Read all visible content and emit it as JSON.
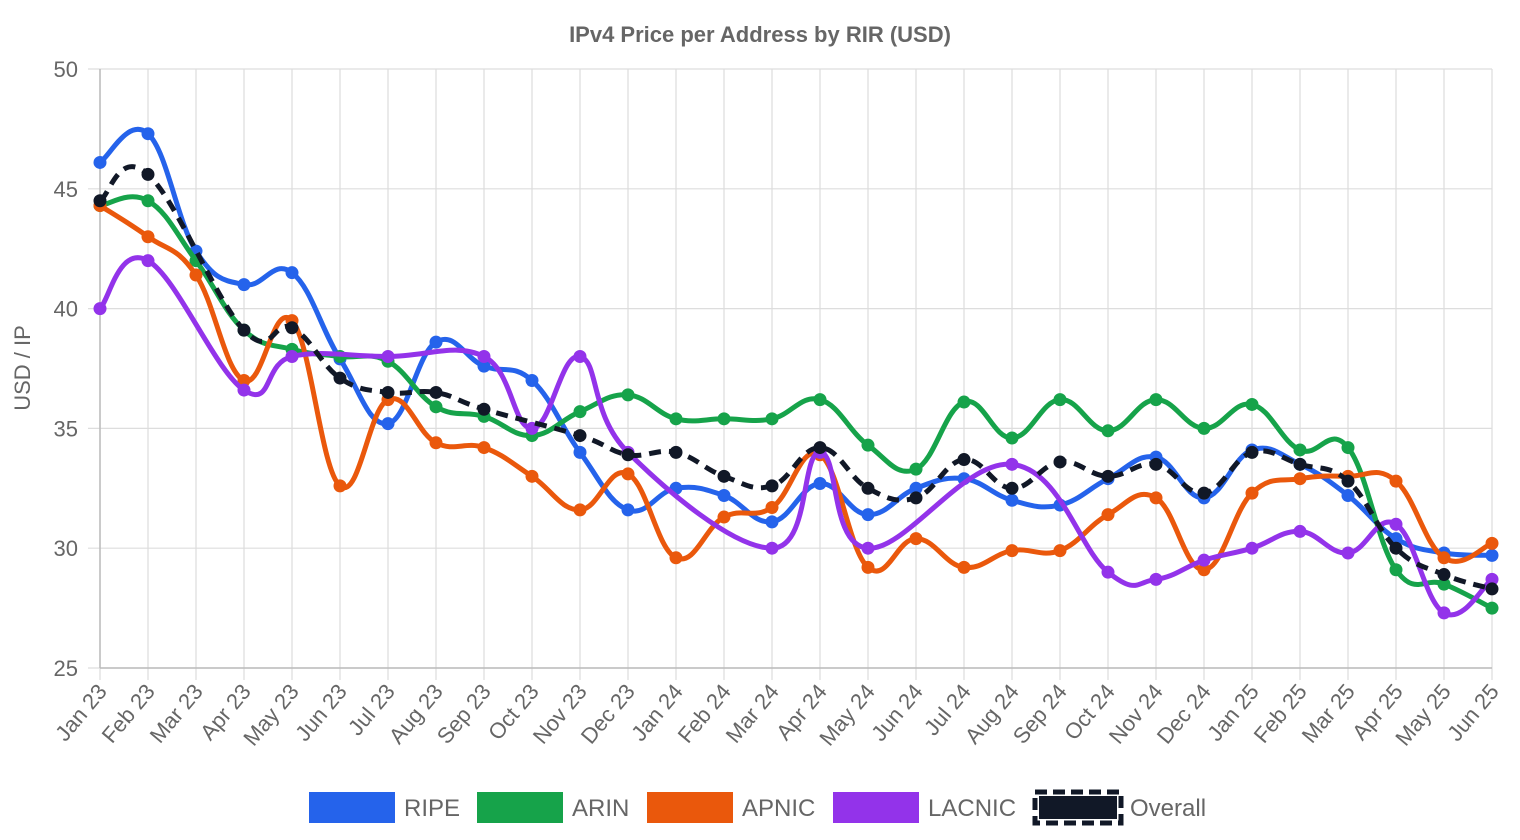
{
  "chart_data": {
    "type": "line",
    "title": "IPv4 Price per Address by RIR (USD)",
    "xlabel": "",
    "ylabel": "USD / IP",
    "ylim": [
      25,
      50
    ],
    "yticks": [
      25,
      30,
      35,
      40,
      45,
      50
    ],
    "grid": true,
    "legend_position": "bottom",
    "categories": [
      "Jan 23",
      "Feb 23",
      "Mar 23",
      "Apr 23",
      "May 23",
      "Jun 23",
      "Jul 23",
      "Aug 23",
      "Sep 23",
      "Oct 23",
      "Nov 23",
      "Dec 23",
      "Jan 24",
      "Feb 24",
      "Mar 24",
      "Apr 24",
      "May 24",
      "Jun 24",
      "Jul 24",
      "Aug 24",
      "Sep 24",
      "Oct 24",
      "Nov 24",
      "Dec 24",
      "Jan 25",
      "Feb 25",
      "Mar 25",
      "Apr 25",
      "May 25",
      "Jun 25"
    ],
    "series": [
      {
        "name": "RIPE",
        "color": "#2563eb",
        "dashed": false,
        "values": [
          46.1,
          47.3,
          42.4,
          41.0,
          41.5,
          37.9,
          35.2,
          38.6,
          37.6,
          37.0,
          34.0,
          31.6,
          32.5,
          32.2,
          31.1,
          32.7,
          31.4,
          32.5,
          32.9,
          32.0,
          31.8,
          32.9,
          33.8,
          32.1,
          34.1,
          33.5,
          32.2,
          30.4,
          29.8,
          29.7
        ]
      },
      {
        "name": "ARIN",
        "color": "#16a34a",
        "dashed": false,
        "values": [
          44.3,
          44.5,
          42.0,
          39.1,
          38.3,
          38.0,
          37.8,
          35.9,
          35.5,
          34.7,
          35.7,
          36.4,
          35.4,
          35.4,
          35.4,
          36.2,
          34.3,
          33.3,
          36.1,
          34.6,
          36.2,
          34.9,
          36.2,
          35.0,
          36.0,
          34.1,
          34.2,
          29.1,
          28.5,
          27.5
        ]
      },
      {
        "name": "APNIC",
        "color": "#ea580c",
        "dashed": false,
        "values": [
          44.3,
          43.0,
          41.4,
          37.0,
          39.5,
          32.6,
          36.2,
          34.4,
          34.2,
          33.0,
          31.6,
          33.1,
          29.6,
          31.3,
          31.7,
          33.9,
          29.2,
          30.4,
          29.2,
          29.9,
          29.9,
          31.4,
          32.1,
          29.1,
          32.3,
          32.9,
          33.0,
          32.8,
          29.6,
          30.2
        ]
      },
      {
        "name": "LACNIC",
        "color": "#9333ea",
        "dashed": false,
        "values": [
          40.0,
          42.0,
          null,
          36.6,
          38.0,
          null,
          38.0,
          null,
          38.0,
          35.0,
          38.0,
          34.0,
          null,
          null,
          30.0,
          34.0,
          30.0,
          null,
          null,
          33.5,
          null,
          29.0,
          28.7,
          29.5,
          30.0,
          30.7,
          29.8,
          31.0,
          27.3,
          28.7
        ]
      },
      {
        "name": "Overall",
        "color": "#111827",
        "dashed": true,
        "values": [
          44.5,
          45.6,
          null,
          39.1,
          39.2,
          37.1,
          36.5,
          36.5,
          35.8,
          null,
          34.7,
          33.9,
          34.0,
          33.0,
          32.6,
          34.2,
          32.5,
          32.1,
          33.7,
          32.5,
          33.6,
          33.0,
          33.5,
          32.3,
          34.0,
          33.5,
          32.8,
          30.0,
          28.9,
          28.3
        ]
      }
    ]
  }
}
